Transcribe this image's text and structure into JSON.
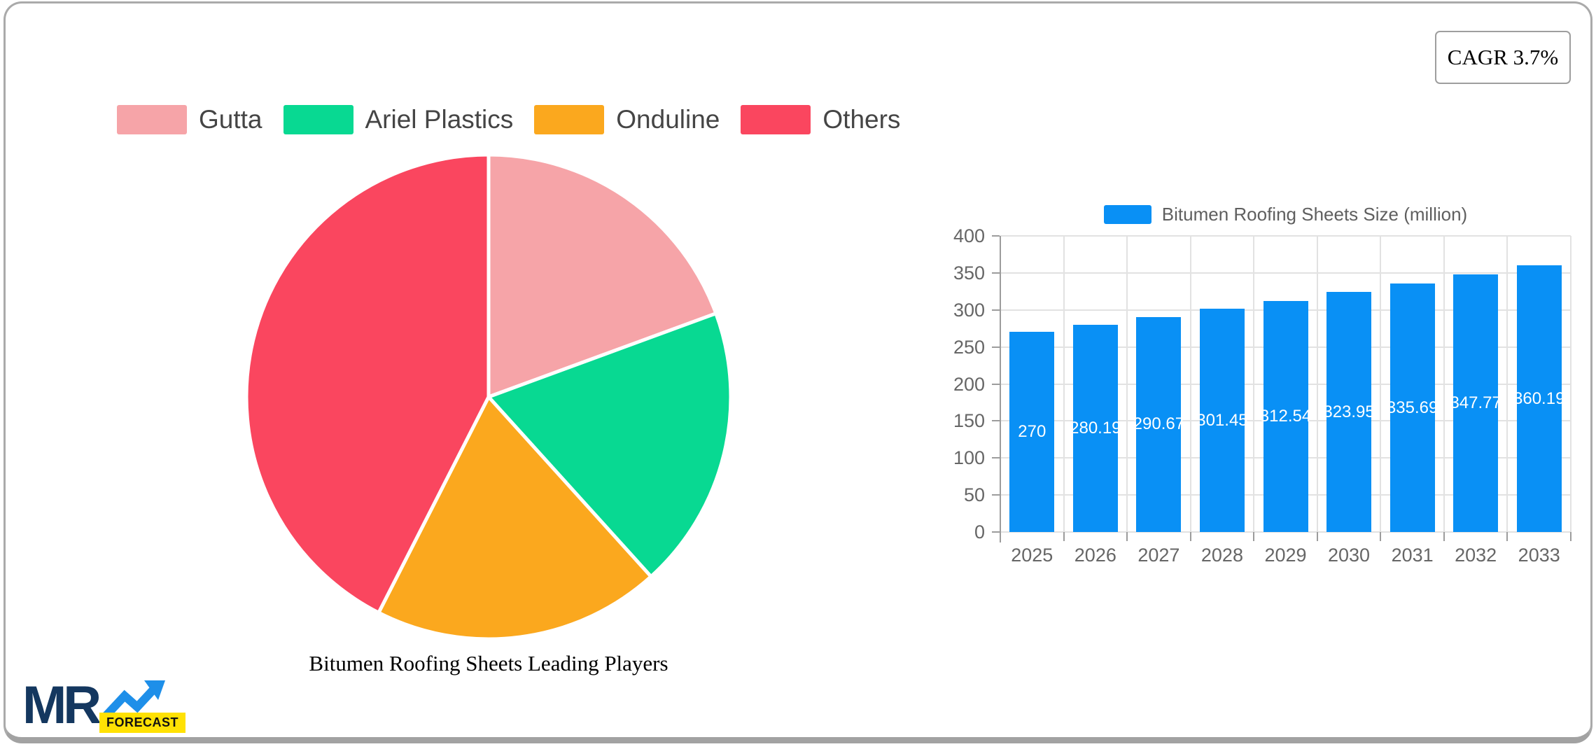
{
  "badge": {
    "cagr_label": "CAGR 3.7%"
  },
  "logo": {
    "mr": "MR",
    "forecast": "FORECAST"
  },
  "chart_data": [
    {
      "type": "pie",
      "title": "Bitumen Roofing Sheets Leading Players",
      "labels": [
        "Gutta",
        "Ariel Plastics",
        "Onduline",
        "Others"
      ],
      "values": [
        19.4,
        18.9,
        19.2,
        42.5
      ],
      "unit": "percent",
      "colors": [
        "#F6A4A8",
        "#08D992",
        "#FBA81E",
        "#FA465F"
      ],
      "legend_position": "top",
      "start_angle": "12 o'clock, clockwise",
      "slice_separator_color": "#ffffff"
    },
    {
      "type": "bar",
      "series": [
        {
          "name": "Bitumen Roofing Sheets Size (million)",
          "values": [
            270,
            280.19,
            290.67,
            301.45,
            312.54,
            323.95,
            335.69,
            347.77,
            360.19
          ]
        }
      ],
      "categories": [
        "2025",
        "2026",
        "2027",
        "2028",
        "2029",
        "2030",
        "2031",
        "2032",
        "2033"
      ],
      "bar_color": "#0990F5",
      "value_label_color": "#ffffff",
      "ylim": [
        0,
        400
      ],
      "yticks": [
        0,
        50,
        100,
        150,
        200,
        250,
        300,
        350,
        400
      ],
      "grid": true,
      "legend_position": "top"
    }
  ]
}
